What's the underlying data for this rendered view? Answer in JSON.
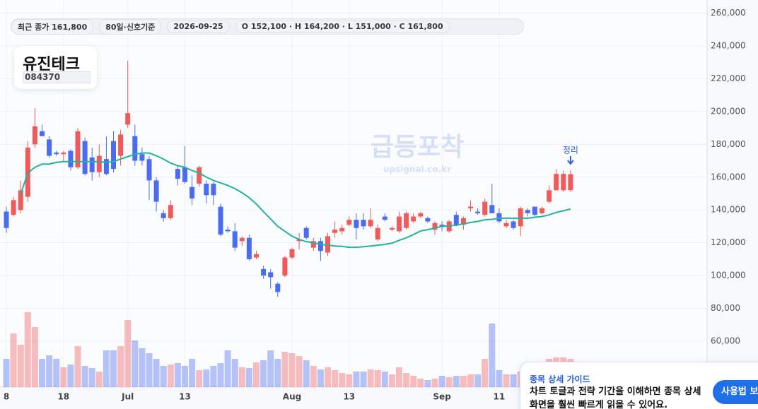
{
  "header": {
    "chips": [
      "최근 종가 161,800",
      "80일·신호기준",
      "2026-09-25",
      "O 152,100 · H 164,200 · L 151,000 · C 161,800"
    ]
  },
  "stock": {
    "name": "유진테크",
    "code": "084370"
  },
  "watermark": {
    "brand": "급등포착",
    "site": "upsignal.co.kr"
  },
  "chart_data": {
    "type": "candlestick",
    "up_color": "#f05a5a",
    "down_color": "#4a6cf0",
    "ma_color": "#22b39c",
    "ylim": [
      32000,
      268000
    ],
    "yticks": [
      {
        "value": 60000,
        "label": "60,000"
      },
      {
        "value": 80000,
        "label": "80,000"
      },
      {
        "value": 100000,
        "label": "100,000"
      },
      {
        "value": 120000,
        "label": "120,000"
      },
      {
        "value": 140000,
        "label": "140,000"
      },
      {
        "value": 160000,
        "label": "160,000"
      },
      {
        "value": 180000,
        "label": "180,000"
      },
      {
        "value": 200000,
        "label": "200,000"
      },
      {
        "value": 220000,
        "label": "220,000"
      },
      {
        "value": 240000,
        "label": "240,000"
      },
      {
        "value": 260000,
        "label": "260,000"
      }
    ],
    "xticks": [
      {
        "value": 0,
        "label": "8"
      },
      {
        "value": 8,
        "label": "18"
      },
      {
        "value": 17,
        "label": "Jul"
      },
      {
        "value": 25,
        "label": "13"
      },
      {
        "value": 40,
        "label": "Aug"
      },
      {
        "value": 48,
        "label": "13"
      },
      {
        "value": 61,
        "label": "Sep"
      },
      {
        "value": 69,
        "label": "11"
      }
    ],
    "grid": true,
    "open": [
      139000,
      137000,
      140000,
      148000,
      180000,
      188000,
      183000,
      175000,
      174000,
      176000,
      166000,
      182000,
      172000,
      163000,
      171000,
      182000,
      173000,
      192000,
      185000,
      174000,
      171000,
      158000,
      138000,
      135000,
      165000,
      166000,
      154000,
      156000,
      156000,
      156000,
      142000,
      128000,
      127000,
      121000,
      123000,
      111000,
      104000,
      102000,
      95000,
      100000,
      111000,
      121000,
      129000,
      117000,
      121000,
      114000,
      126000,
      127000,
      131000,
      134000,
      134000,
      130000,
      122000,
      136000,
      128000,
      127000,
      129000,
      133000,
      136000,
      135000,
      128000,
      131000,
      127000,
      137000,
      131000,
      141000,
      139000,
      137000,
      143000,
      138000,
      130000,
      133000,
      130000,
      140000,
      142000,
      138000,
      145000,
      152000,
      152000,
      152100
    ],
    "high": [
      142000,
      148000,
      158000,
      182000,
      202000,
      192000,
      185000,
      176000,
      176000,
      177000,
      190000,
      184000,
      178000,
      180000,
      185000,
      188000,
      189000,
      231000,
      192000,
      178000,
      173000,
      160000,
      140000,
      146000,
      167000,
      179000,
      161000,
      167000,
      158000,
      157000,
      144000,
      130000,
      132000,
      124000,
      125000,
      115000,
      106000,
      104000,
      96000,
      112000,
      117000,
      126000,
      130000,
      123000,
      123000,
      126000,
      133000,
      131000,
      136000,
      138000,
      138000,
      141000,
      131000,
      138000,
      130000,
      139000,
      139000,
      138000,
      139000,
      136000,
      133000,
      133000,
      134000,
      139000,
      136000,
      146000,
      141000,
      147000,
      156000,
      141000,
      134000,
      134000,
      142000,
      141000,
      142000,
      142000,
      155000,
      165000,
      164000,
      164200
    ],
    "low": [
      126000,
      136000,
      138000,
      145000,
      178000,
      185000,
      172000,
      173000,
      170000,
      164000,
      165000,
      161000,
      158000,
      160000,
      161000,
      163000,
      167000,
      190000,
      167000,
      167000,
      146000,
      139000,
      133000,
      134000,
      155000,
      156000,
      143000,
      154000,
      144000,
      143000,
      124000,
      126000,
      115000,
      118000,
      109000,
      110000,
      98000,
      92000,
      87000,
      99000,
      110000,
      116000,
      122000,
      115000,
      109000,
      112000,
      123000,
      125000,
      130000,
      122000,
      128000,
      129000,
      121000,
      133000,
      127000,
      126000,
      128000,
      132000,
      135000,
      132000,
      125000,
      127000,
      126000,
      130000,
      128000,
      139000,
      137000,
      136000,
      138000,
      132000,
      129000,
      128000,
      124000,
      136000,
      136000,
      137000,
      144000,
      152000,
      151000,
      151000
    ],
    "close": [
      129000,
      146000,
      152000,
      178000,
      191000,
      185000,
      173000,
      174000,
      175000,
      166000,
      188000,
      162000,
      163000,
      173000,
      162000,
      165000,
      186000,
      199000,
      170000,
      170000,
      158000,
      145000,
      135000,
      143000,
      159000,
      157000,
      147000,
      166000,
      149000,
      149000,
      125000,
      127000,
      117000,
      123000,
      110000,
      113000,
      100000,
      99000,
      90000,
      111000,
      116000,
      122000,
      123000,
      121000,
      115000,
      124000,
      128000,
      129000,
      134000,
      129000,
      130000,
      134000,
      129000,
      134000,
      129000,
      136000,
      138000,
      136000,
      138000,
      133000,
      132000,
      130000,
      133000,
      131000,
      135000,
      142000,
      138000,
      145000,
      138000,
      133000,
      132000,
      129000,
      141000,
      138000,
      137000,
      141000,
      152000,
      162000,
      162000,
      161800
    ],
    "ma": [
      null,
      null,
      149600,
      162600,
      166000,
      168000,
      168000,
      169000,
      169500,
      169500,
      169500,
      169500,
      169500,
      169500,
      169000,
      169500,
      171000,
      172500,
      174000,
      174700,
      174700,
      173000,
      171000,
      168600,
      167000,
      166000,
      164000,
      162500,
      160000,
      158000,
      156500,
      155000,
      153000,
      150500,
      147500,
      143600,
      139000,
      134500,
      130000,
      127000,
      124000,
      122000,
      120700,
      120000,
      119000,
      118500,
      118000,
      117800,
      117200,
      117200,
      117600,
      118000,
      118500,
      119000,
      119800,
      121500,
      123000,
      125000,
      127200,
      128000,
      129000,
      130000,
      130300,
      130700,
      131500,
      132400,
      133000,
      134000,
      134300,
      135000,
      135000,
      135000,
      135000,
      135000,
      135500,
      136000,
      137000,
      138500,
      139500,
      140600
    ],
    "volume": [
      40,
      76,
      60,
      106,
      85,
      40,
      45,
      40,
      28,
      32,
      58,
      30,
      27,
      22,
      52,
      52,
      58,
      95,
      66,
      55,
      48,
      40,
      30,
      32,
      34,
      30,
      40,
      24,
      25,
      30,
      34,
      52,
      40,
      28,
      27,
      35,
      38,
      52,
      40,
      50,
      48,
      44,
      38,
      30,
      25,
      28,
      24,
      20,
      18,
      22,
      22,
      25,
      24,
      22,
      18,
      28,
      20,
      16,
      12,
      10,
      12,
      16,
      14,
      16,
      16,
      18,
      18,
      40,
      90,
      24,
      18,
      18,
      22,
      20,
      30,
      35,
      40,
      42,
      42,
      40
    ],
    "annotation": {
      "text": "정리",
      "index": 79
    }
  },
  "guide": {
    "title": "종목 상세 가이드",
    "text": "차트 토글과 전략 기간을 이해하면 종목 상세 화면을 훨씬 빠르게 읽을 수 있어요.",
    "button": "사용법 보기"
  }
}
